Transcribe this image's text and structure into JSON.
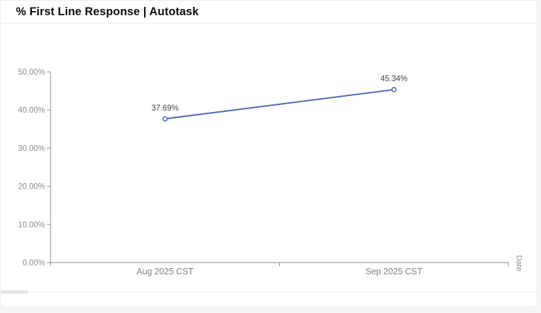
{
  "header": {
    "title": "% First Line Response | Autotask"
  },
  "colors": {
    "line": "#4d68b5",
    "marker_fill": "#ffffff",
    "axis": "#8a8a92",
    "tick_label": "#8b8b8b",
    "x_label": "#7f7f7f",
    "data_label": "#404040",
    "title": "#0d0d0d",
    "card_border": "#ececec",
    "page_bg": "#f5f6f7"
  },
  "chart_data": {
    "type": "line",
    "title": "% First Line Response | Autotask",
    "categories": [
      "Aug 2025  CST",
      "Sep 2025  CST"
    ],
    "values": [
      37.69,
      45.34
    ],
    "point_labels": [
      "37.69%",
      "45.34%"
    ],
    "xlabel": "Date",
    "ylabel": "",
    "ylim": [
      0,
      50
    ],
    "ytick_labels": [
      "0.00%",
      "10.00%",
      "20.00%",
      "30.00%",
      "40.00%",
      "50.00%"
    ],
    "grid": false,
    "legend": "none",
    "marker": "circle-open"
  }
}
